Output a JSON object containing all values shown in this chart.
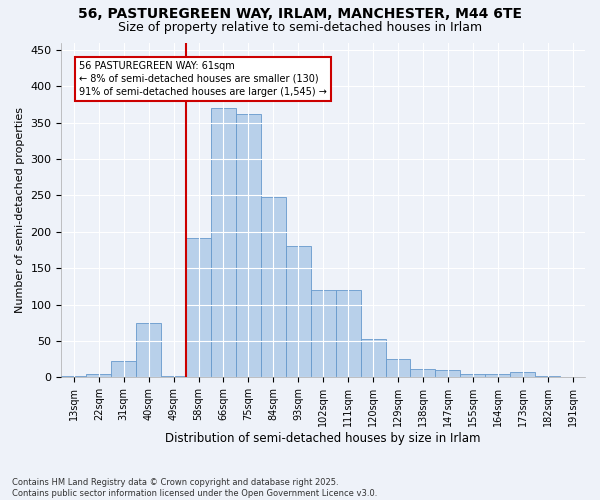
{
  "title_line1": "56, PASTUREGREEN WAY, IRLAM, MANCHESTER, M44 6TE",
  "title_line2": "Size of property relative to semi-detached houses in Irlam",
  "xlabel": "Distribution of semi-detached houses by size in Irlam",
  "ylabel": "Number of semi-detached properties",
  "footnote": "Contains HM Land Registry data © Crown copyright and database right 2025.\nContains public sector information licensed under the Open Government Licence v3.0.",
  "bin_labels": [
    "13sqm",
    "22sqm",
    "31sqm",
    "40sqm",
    "49sqm",
    "58sqm",
    "66sqm",
    "75sqm",
    "84sqm",
    "93sqm",
    "102sqm",
    "111sqm",
    "120sqm",
    "129sqm",
    "138sqm",
    "147sqm",
    "155sqm",
    "164sqm",
    "173sqm",
    "182sqm",
    "191sqm"
  ],
  "bar_heights": [
    2,
    5,
    22,
    75,
    2,
    192,
    370,
    362,
    248,
    180,
    120,
    120,
    52,
    25,
    12,
    10,
    5,
    5,
    8,
    2,
    1
  ],
  "bar_color": "#b8d0ea",
  "bar_edge_color": "#6699cc",
  "vline_x": 5.5,
  "annotation_text": "56 PASTUREGREEN WAY: 61sqm\n← 8% of semi-detached houses are smaller (130)\n91% of semi-detached houses are larger (1,545) →",
  "annotation_box_color": "#ffffff",
  "annotation_box_edge": "#cc0000",
  "vline_color": "#cc0000",
  "ylim": [
    0,
    460
  ],
  "yticks": [
    0,
    50,
    100,
    150,
    200,
    250,
    300,
    350,
    400,
    450
  ],
  "background_color": "#eef2f9",
  "grid_color": "#ffffff",
  "title_fontsize": 10,
  "subtitle_fontsize": 9
}
